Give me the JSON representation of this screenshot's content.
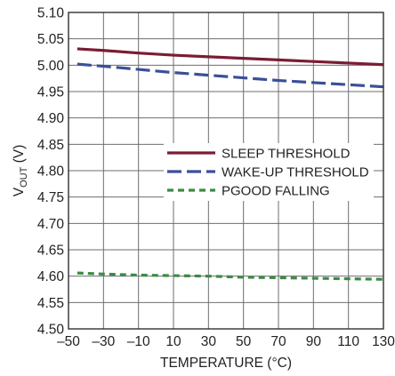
{
  "chart_data": {
    "type": "line",
    "title": "",
    "xlabel": "TEMPERATURE (°C)",
    "ylabel": {
      "main": "V",
      "sub": "OUT",
      "suffix": " (V)"
    },
    "xlim": [
      -50,
      130
    ],
    "ylim": [
      4.5,
      5.1
    ],
    "x_ticks": [
      -50,
      -30,
      -10,
      10,
      30,
      50,
      70,
      90,
      110,
      130
    ],
    "x_tick_labels": [
      "–50",
      "–30",
      "–10",
      "10",
      "30",
      "50",
      "70",
      "90",
      "110",
      "130"
    ],
    "y_ticks": [
      4.5,
      4.55,
      4.6,
      4.65,
      4.7,
      4.75,
      4.8,
      4.85,
      4.9,
      4.95,
      5.0,
      5.05,
      5.1
    ],
    "y_tick_labels": [
      "4.50",
      "4.55",
      "4.60",
      "4.65",
      "4.70",
      "4.75",
      "4.80",
      "4.85",
      "4.90",
      "4.95",
      "5.00",
      "5.05",
      "5.10"
    ],
    "grid": true,
    "legend_position": "center-right",
    "series": [
      {
        "name": "SLEEP THRESHOLD",
        "color": "#7b1c34",
        "dash": "solid",
        "x": [
          -45,
          -30,
          -10,
          10,
          30,
          50,
          70,
          90,
          110,
          130
        ],
        "y": [
          5.031,
          5.028,
          5.023,
          5.019,
          5.016,
          5.013,
          5.01,
          5.007,
          5.004,
          5.001
        ]
      },
      {
        "name": "WAKE-UP THRESHOLD",
        "color": "#3b4f98",
        "dash": "long-dash",
        "x": [
          -45,
          -30,
          -10,
          10,
          30,
          50,
          70,
          90,
          110,
          130
        ],
        "y": [
          5.002,
          4.998,
          4.992,
          4.986,
          4.981,
          4.976,
          4.971,
          4.967,
          4.963,
          4.959
        ]
      },
      {
        "name": "PGOOD FALLING",
        "color": "#3d8a45",
        "dash": "short-dash",
        "x": [
          -45,
          -30,
          -10,
          10,
          30,
          50,
          70,
          90,
          110,
          130
        ],
        "y": [
          4.606,
          4.604,
          4.602,
          4.601,
          4.6,
          4.598,
          4.597,
          4.596,
          4.595,
          4.594
        ]
      }
    ]
  }
}
